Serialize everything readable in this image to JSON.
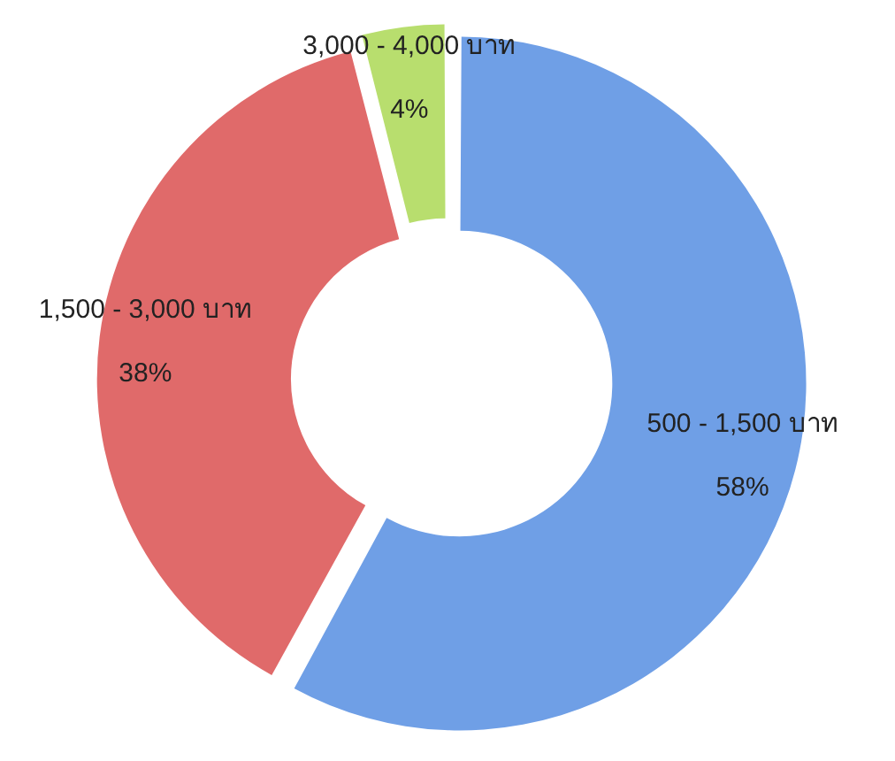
{
  "chart_data": {
    "type": "donut",
    "categories": [
      "500 - 1,500 บาท",
      "1,500 - 3,000 บาท",
      "3,000 - 4,000 บาท"
    ],
    "values": [
      58,
      38,
      4
    ],
    "colors": [
      "#6f9fe6",
      "#e06a6a",
      "#b8de6e"
    ],
    "value_labels": [
      "58%",
      "38%",
      "4%"
    ],
    "legend": false
  }
}
